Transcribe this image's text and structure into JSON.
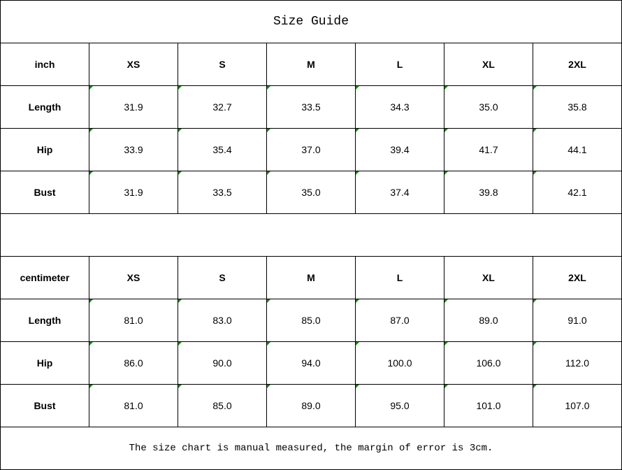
{
  "title": "Size Guide",
  "tables": [
    {
      "unit": "inch",
      "sizes": [
        "XS",
        "S",
        "M",
        "L",
        "XL",
        "2XL"
      ],
      "rows": [
        {
          "label": "Length",
          "values": [
            "31.9",
            "32.7",
            "33.5",
            "34.3",
            "35.0",
            "35.8"
          ]
        },
        {
          "label": "Hip",
          "values": [
            "33.9",
            "35.4",
            "37.0",
            "39.4",
            "41.7",
            "44.1"
          ]
        },
        {
          "label": "Bust",
          "values": [
            "31.9",
            "33.5",
            "35.0",
            "37.4",
            "39.8",
            "42.1"
          ]
        }
      ]
    },
    {
      "unit": "centimeter",
      "sizes": [
        "XS",
        "S",
        "M",
        "L",
        "XL",
        "2XL"
      ],
      "rows": [
        {
          "label": "Length",
          "values": [
            "81.0",
            "83.0",
            "85.0",
            "87.0",
            "89.0",
            "91.0"
          ]
        },
        {
          "label": "Hip",
          "values": [
            "86.0",
            "90.0",
            "94.0",
            "100.0",
            "106.0",
            "112.0"
          ]
        },
        {
          "label": "Bust",
          "values": [
            "81.0",
            "85.0",
            "89.0",
            "95.0",
            "101.0",
            "107.0"
          ]
        }
      ]
    }
  ],
  "note": "The size chart is manual measured, the margin of error is 3cm.",
  "colors": {
    "text_number_indicator": "#0a8a0a",
    "grid": "#000000"
  }
}
